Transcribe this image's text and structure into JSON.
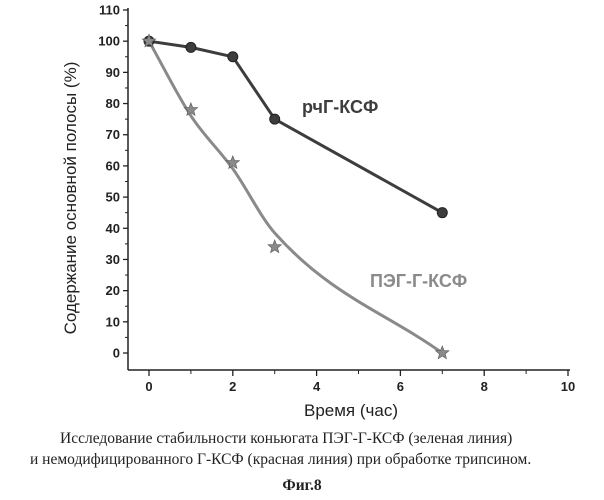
{
  "chart_data": {
    "type": "line",
    "xlabel": "Время (час)",
    "ylabel": "Содержание основной полосы (%)",
    "xlim": [
      0,
      10
    ],
    "ylim": [
      0,
      110
    ],
    "xticks": [
      "0",
      "2",
      "4",
      "6",
      "8",
      "10"
    ],
    "yticks": [
      "0",
      "10",
      "20",
      "30",
      "40",
      "50",
      "60",
      "70",
      "80",
      "90",
      "100",
      "110"
    ],
    "grid": false,
    "series": [
      {
        "name": "рчГ-КСФ",
        "marker": "circle",
        "color": "#3d3d3d",
        "x": [
          0,
          1,
          2,
          3,
          7
        ],
        "y": [
          100,
          98,
          95,
          75,
          45
        ]
      },
      {
        "name": "ПЭГ-Г-КСФ",
        "marker": "star",
        "color": "#8a8a8a",
        "x": [
          0,
          1,
          2,
          3,
          7
        ],
        "y": [
          100,
          78,
          61,
          34,
          0
        ]
      }
    ]
  },
  "caption": {
    "line1": "Исследование стабильности коньюгата ПЭГ-Г-КСФ (зеленая линия)",
    "line2": "и немодифицированного Г-КСФ (красная линия) при обработке трипсином.",
    "figure_label": "Фиг.8"
  }
}
